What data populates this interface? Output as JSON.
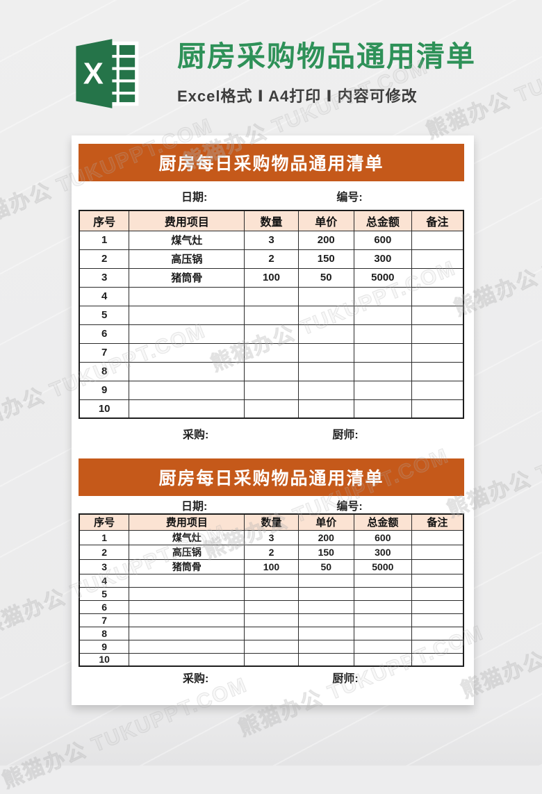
{
  "page": {
    "watermark": "熊猫办公 TUKUPPT.COM",
    "background_color": "#ededee"
  },
  "header": {
    "title": "厨房采购物品通用清单",
    "subtitle": "Excel格式 Ⅰ A4打印 Ⅰ 内容可修改",
    "title_color": "#2e9158",
    "excel_icon": "excel-logo-icon",
    "excel_icon_color": "#257449",
    "excel_icon_letter": "X"
  },
  "card": {
    "banner_color": "#c5591a",
    "header_row_color": "#fbe3d3"
  },
  "sheets": [
    {
      "banner": "厨房每日采购物品通用清单",
      "date_label": "日期:",
      "number_label": "编号:",
      "columns": [
        "序号",
        "费用项目",
        "数量",
        "单价",
        "总金额",
        "备注"
      ],
      "rows": [
        [
          "1",
          "煤气灶",
          "3",
          "200",
          "600",
          ""
        ],
        [
          "2",
          "高压锅",
          "2",
          "150",
          "300",
          ""
        ],
        [
          "3",
          "猪筒骨",
          "100",
          "50",
          "5000",
          ""
        ],
        [
          "4",
          "",
          "",
          "",
          "",
          ""
        ],
        [
          "5",
          "",
          "",
          "",
          "",
          ""
        ],
        [
          "6",
          "",
          "",
          "",
          "",
          ""
        ],
        [
          "7",
          "",
          "",
          "",
          "",
          ""
        ],
        [
          "8",
          "",
          "",
          "",
          "",
          ""
        ],
        [
          "9",
          "",
          "",
          "",
          "",
          ""
        ],
        [
          "10",
          "",
          "",
          "",
          "",
          ""
        ]
      ],
      "purchaser_label": "采购:",
      "chef_label": "厨师:"
    },
    {
      "banner": "厨房每日采购物品通用清单",
      "date_label": "日期:",
      "number_label": "编号:",
      "columns": [
        "序号",
        "费用项目",
        "数量",
        "单价",
        "总金额",
        "备注"
      ],
      "rows": [
        [
          "1",
          "煤气灶",
          "3",
          "200",
          "600",
          ""
        ],
        [
          "2",
          "高压锅",
          "2",
          "150",
          "300",
          ""
        ],
        [
          "3",
          "猪筒骨",
          "100",
          "50",
          "5000",
          ""
        ],
        [
          "4",
          "",
          "",
          "",
          "",
          ""
        ],
        [
          "5",
          "",
          "",
          "",
          "",
          ""
        ],
        [
          "6",
          "",
          "",
          "",
          "",
          ""
        ],
        [
          "7",
          "",
          "",
          "",
          "",
          ""
        ],
        [
          "8",
          "",
          "",
          "",
          "",
          ""
        ],
        [
          "9",
          "",
          "",
          "",
          "",
          ""
        ],
        [
          "10",
          "",
          "",
          "",
          "",
          ""
        ]
      ],
      "purchaser_label": "采购:",
      "chef_label": "厨师:"
    }
  ]
}
